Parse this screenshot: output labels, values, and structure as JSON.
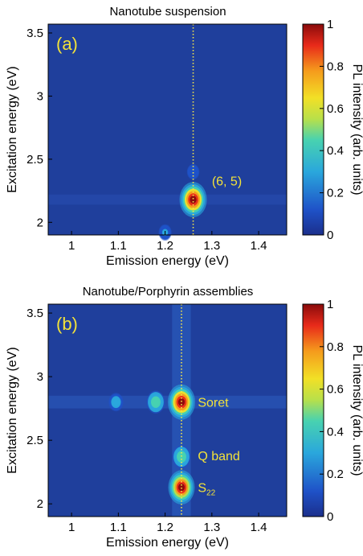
{
  "chart_data": [
    {
      "type": "heatmap",
      "title": "Nanotube suspension",
      "panel_label": "(a)",
      "xlabel": "Emission energy (eV)",
      "ylabel": "Excitation energy (eV)",
      "xlim": [
        0.95,
        1.46
      ],
      "ylim": [
        1.9,
        3.57
      ],
      "xticks": [
        "1",
        "1.1",
        "1.2",
        "1.3",
        "1.4"
      ],
      "yticks": [
        "2",
        "2.5",
        "3",
        "3.5"
      ],
      "colorbar": {
        "label": "PL intensity (arb. units)",
        "ticks": [
          "0",
          "0.2",
          "0.4",
          "0.6",
          "0.8",
          "1"
        ],
        "range": [
          0,
          1
        ]
      },
      "reference_line_x": 1.26,
      "peaks": [
        {
          "x": 1.26,
          "y": 2.18,
          "intensity": 1.0
        },
        {
          "x": 1.2,
          "y": 1.92,
          "intensity": 0.15
        },
        {
          "x": 1.26,
          "y": 2.4,
          "intensity": 0.12
        }
      ],
      "annotations": [
        {
          "text": "(6, 5)",
          "x": 1.3,
          "y": 2.33
        }
      ]
    },
    {
      "type": "heatmap",
      "title": "Nanotube/Porphyrin assemblies",
      "panel_label": "(b)",
      "xlabel": "Emission energy (eV)",
      "ylabel": "Excitation energy (eV)",
      "xlim": [
        0.95,
        1.46
      ],
      "ylim": [
        1.9,
        3.57
      ],
      "xticks": [
        "1",
        "1.1",
        "1.2",
        "1.3",
        "1.4"
      ],
      "yticks": [
        "2",
        "2.5",
        "3",
        "3.5"
      ],
      "colorbar": {
        "label": "PL intensity (arb. units)",
        "ticks": [
          "0",
          "0.2",
          "0.4",
          "0.6",
          "0.8",
          "1"
        ],
        "range": [
          0,
          1
        ]
      },
      "reference_line_x": 1.235,
      "peaks": [
        {
          "x": 1.235,
          "y": 2.8,
          "intensity": 1.0
        },
        {
          "x": 1.235,
          "y": 2.13,
          "intensity": 0.95
        },
        {
          "x": 1.235,
          "y": 2.37,
          "intensity": 0.45
        },
        {
          "x": 1.18,
          "y": 2.8,
          "intensity": 0.45
        },
        {
          "x": 1.095,
          "y": 2.8,
          "intensity": 0.25
        }
      ],
      "annotations": [
        {
          "text": "Soret",
          "x": 1.27,
          "y": 2.8
        },
        {
          "text": "Q band",
          "x": 1.27,
          "y": 2.38
        },
        {
          "text": "S",
          "sub": "22",
          "x": 1.27,
          "y": 2.13
        }
      ]
    }
  ]
}
